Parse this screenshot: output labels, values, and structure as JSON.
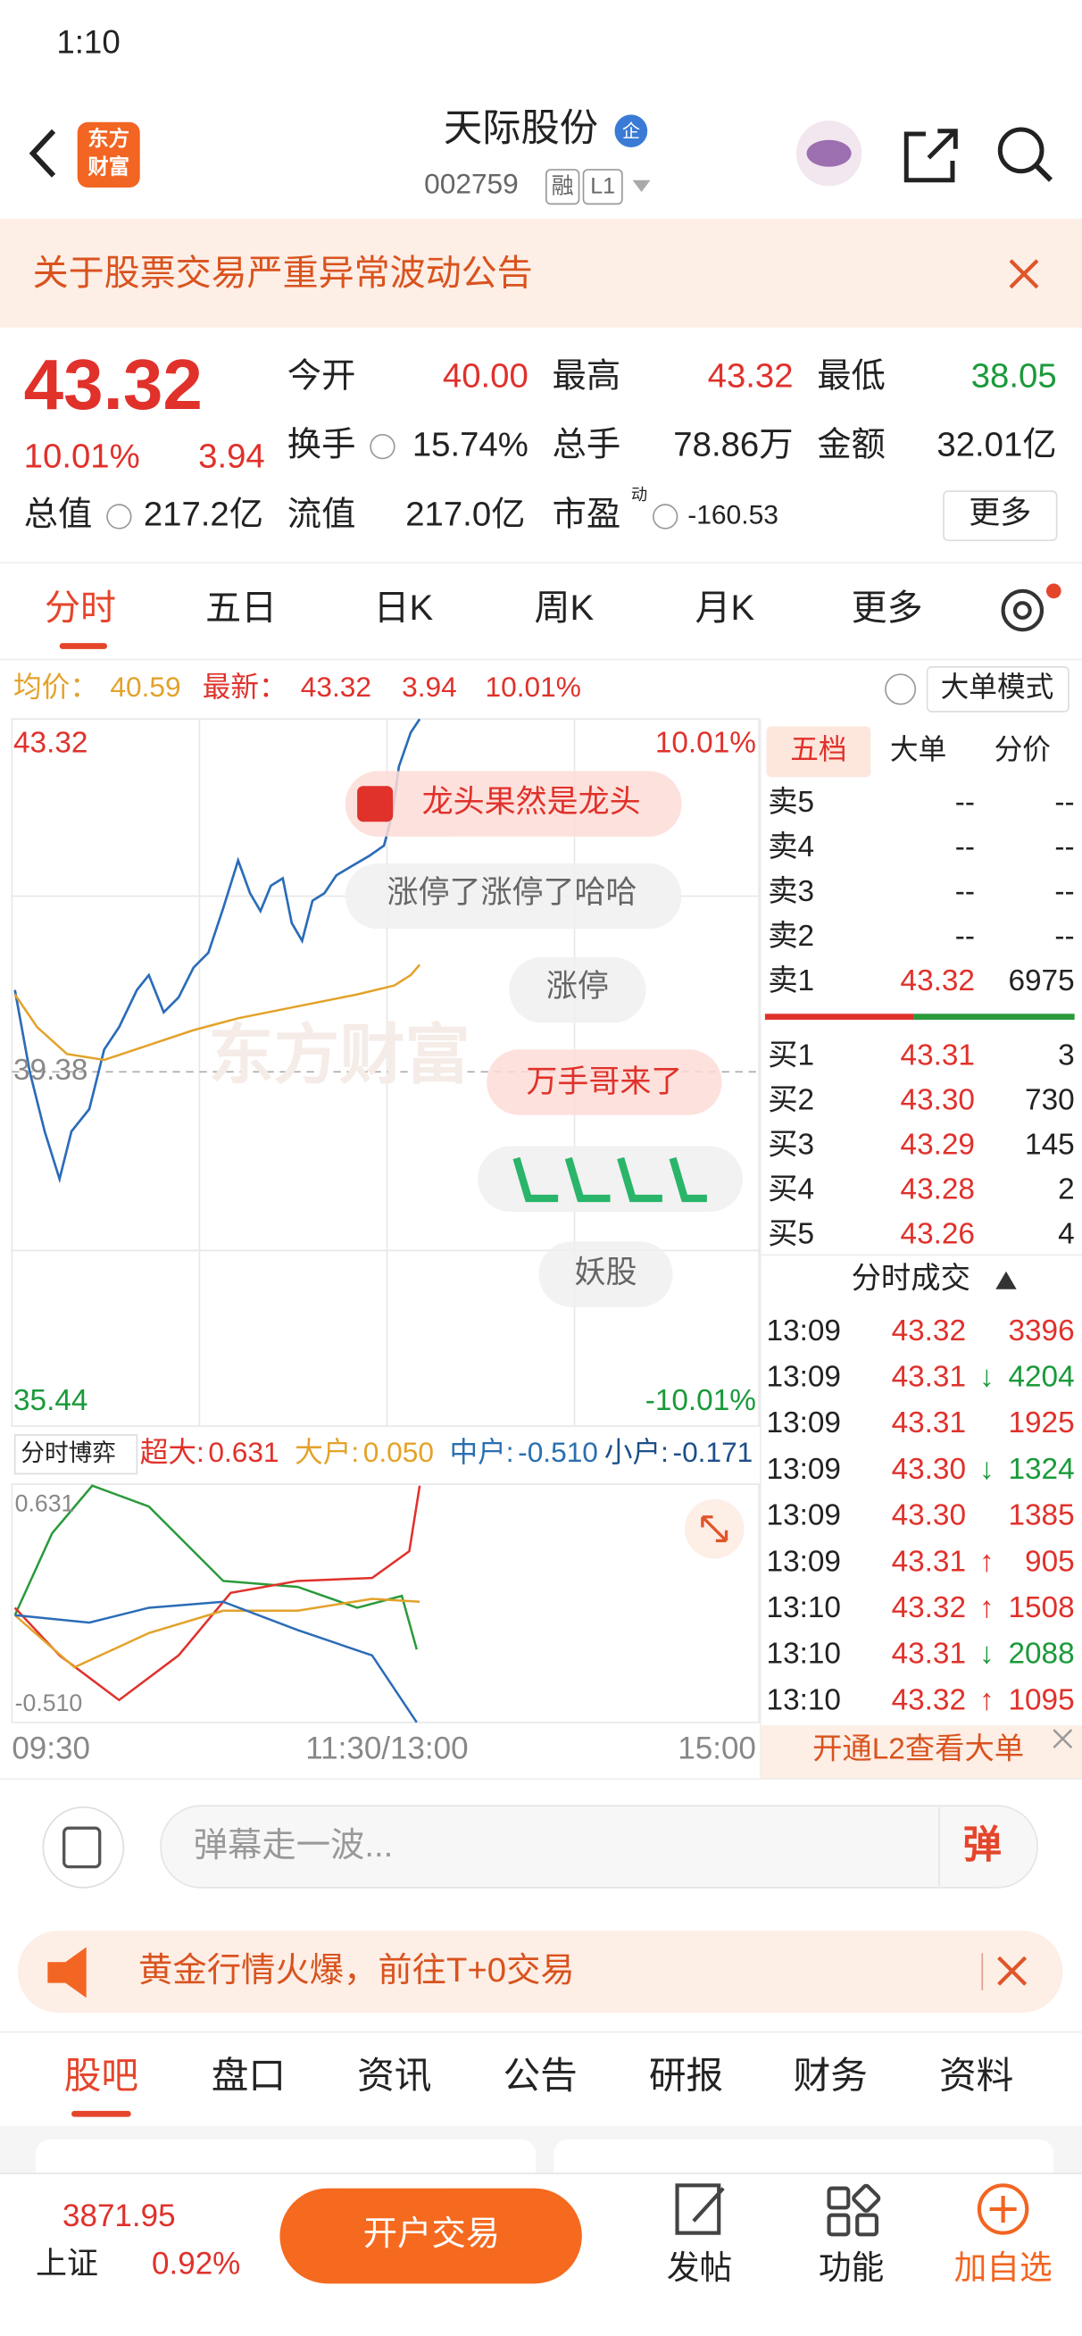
{
  "status_bar": {
    "time": "1:10"
  },
  "header": {
    "logo": [
      "东方",
      "财富"
    ],
    "title": "天际股份",
    "badge": "企",
    "code": "002759",
    "tags": [
      "融",
      "L1"
    ]
  },
  "notice": "关于股票交易严重异常波动公告",
  "quote": {
    "price": "43.32",
    "change_pct": "10.01%",
    "change": "3.94",
    "fields": [
      {
        "label": "今开",
        "value": "40.00"
      },
      {
        "label": "最高",
        "value": "43.32"
      },
      {
        "label": "最低",
        "value": "38.05"
      },
      {
        "label": "换手",
        "value": "15.74%"
      },
      {
        "label": "总手",
        "value": "78.86万"
      },
      {
        "label": "金额",
        "value": "32.01亿"
      },
      {
        "label": "总值",
        "value": "217.2亿"
      },
      {
        "label": "流值",
        "value": "217.0亿"
      },
      {
        "label": "市盈",
        "value": "-160.53",
        "sup": "动"
      }
    ],
    "more": "更多"
  },
  "tabs": [
    "分时",
    "五日",
    "日K",
    "周K",
    "月K",
    "更多"
  ],
  "info": {
    "avg_label": "均价：",
    "avg": "40.59",
    "last_label": "最新：",
    "last": "43.32",
    "change": "3.94",
    "change_pct": "10.01%",
    "mode_button": "大单模式"
  },
  "chart": {
    "high": "43.32",
    "high_pct": "10.01%",
    "mid": "39.38",
    "low": "35.44",
    "low_pct": "-10.01%",
    "danmaku": [
      "龙头果然是龙头",
      "涨停了涨停了哈哈",
      "涨停",
      "万手哥来了",
      "妖股"
    ],
    "x_labels": [
      "09:30",
      "11:30/13:00",
      "15:00"
    ]
  },
  "flow": {
    "selector": "分时博弈",
    "items": [
      {
        "label": "超大:",
        "value": "0.631"
      },
      {
        "label": "大户:",
        "value": "0.050"
      },
      {
        "label": "中户:",
        "value": "-0.510"
      },
      {
        "label": "小户:",
        "value": "-0.171"
      }
    ],
    "max": "0.631",
    "min": "-0.510"
  },
  "order_book": {
    "tabs": [
      "五档",
      "大单",
      "分价"
    ],
    "rows": [
      {
        "label": "卖5",
        "price": "--",
        "volume": "--"
      },
      {
        "label": "卖4",
        "price": "--",
        "volume": "--"
      },
      {
        "label": "卖3",
        "price": "--",
        "volume": "--"
      },
      {
        "label": "卖2",
        "price": "--",
        "volume": "--"
      },
      {
        "label": "卖1",
        "price": "43.32",
        "volume": "6975"
      },
      {
        "label": "买1",
        "price": "43.31",
        "volume": "3"
      },
      {
        "label": "买2",
        "price": "43.30",
        "volume": "730"
      },
      {
        "label": "买3",
        "price": "43.29",
        "volume": "145"
      },
      {
        "label": "买4",
        "price": "43.28",
        "volume": "2"
      },
      {
        "label": "买5",
        "price": "43.26",
        "volume": "4"
      }
    ]
  },
  "trades": {
    "title": "分时成交",
    "rows": [
      {
        "time": "13:09",
        "price": "43.32",
        "volume": "3396"
      },
      {
        "time": "13:09",
        "price": "43.31",
        "dir": "↓",
        "volume": "4204"
      },
      {
        "time": "13:09",
        "price": "43.31",
        "volume": "1925"
      },
      {
        "time": "13:09",
        "price": "43.30",
        "dir": "↓",
        "volume": "1324"
      },
      {
        "time": "13:09",
        "price": "43.30",
        "volume": "1385"
      },
      {
        "time": "13:09",
        "price": "43.31",
        "dir": "↑",
        "volume": "905"
      },
      {
        "time": "13:10",
        "price": "43.32",
        "dir": "↑",
        "volume": "1508"
      },
      {
        "time": "13:10",
        "price": "43.31",
        "dir": "↓",
        "volume": "2088"
      },
      {
        "time": "13:10",
        "price": "43.32",
        "dir": "↑",
        "volume": "1095"
      }
    ],
    "banner": "开通L2查看大单"
  },
  "comment": {
    "placeholder": "弹幕走一波...",
    "button": "弹"
  },
  "ad": "黄金行情火爆，前往T+0交易",
  "sections": [
    "股吧",
    "盘口",
    "资讯",
    "公告",
    "研报",
    "财务",
    "资料"
  ],
  "footer": {
    "index_value": "3871.95",
    "index_name": "上证",
    "index_change": "0.92%",
    "trade_button": "开户交易",
    "nav": [
      "发帖",
      "功能",
      "加自选"
    ]
  }
}
